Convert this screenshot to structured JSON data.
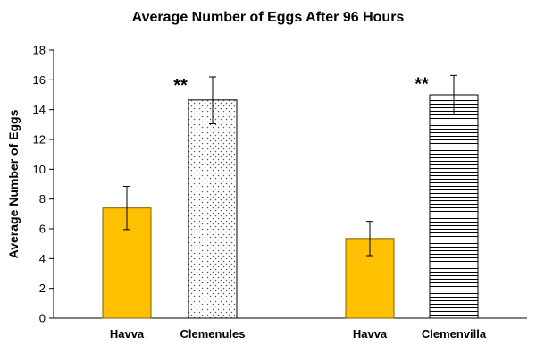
{
  "chart_data": {
    "type": "bar",
    "title": "Average Number of Eggs After 96 Hours",
    "xlabel": "",
    "ylabel": "Average Number of Eggs",
    "ylim": [
      0,
      18
    ],
    "yticks": [
      0,
      2,
      4,
      6,
      8,
      10,
      12,
      14,
      16,
      18
    ],
    "grid": false,
    "legend": "none",
    "bars": [
      {
        "category": "Havva",
        "value": 7.4,
        "error_low": 5.95,
        "error_high": 8.85,
        "fill": "solid",
        "color": "#FFC000",
        "annotation": ""
      },
      {
        "category": "Clemenules",
        "value": 14.65,
        "error_low": 13.05,
        "error_high": 16.2,
        "fill": "dotted",
        "color": "#FFFFFF",
        "annotation": "**"
      },
      {
        "category": "Havva",
        "value": 5.35,
        "error_low": 4.2,
        "error_high": 6.5,
        "fill": "solid",
        "color": "#FFC000",
        "annotation": ""
      },
      {
        "category": "Clemenvilla",
        "value": 15.0,
        "error_low": 13.7,
        "error_high": 16.3,
        "fill": "horizontal-lines",
        "color": "#FFFFFF",
        "annotation": "**"
      }
    ]
  }
}
